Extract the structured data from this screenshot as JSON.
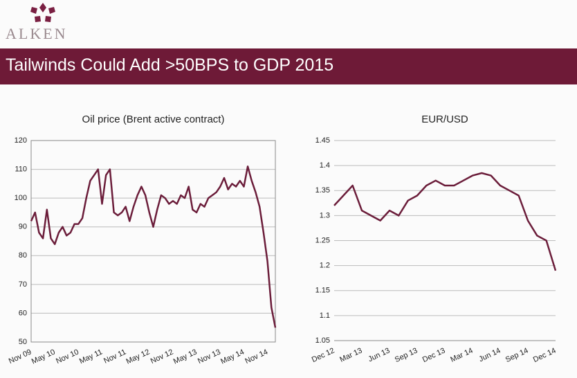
{
  "header": {
    "logo": "ALKEN",
    "title": "Tailwinds Could Add >50BPS to GDP 2015"
  },
  "chart_data": [
    {
      "type": "line",
      "title": "Oil price (Brent active contract)",
      "color": "#6b1d3a",
      "grid": true,
      "border": true,
      "categories": [
        "Nov 09",
        null,
        null,
        null,
        null,
        null,
        "May 10",
        null,
        null,
        null,
        null,
        null,
        "Nov 10",
        null,
        null,
        null,
        null,
        null,
        "May 11",
        null,
        null,
        null,
        null,
        null,
        "Nov 11",
        null,
        null,
        null,
        null,
        null,
        "May 12",
        null,
        null,
        null,
        null,
        null,
        "Nov 12",
        null,
        null,
        null,
        null,
        null,
        "May 13",
        null,
        null,
        null,
        null,
        null,
        "Nov 13",
        null,
        null,
        null,
        null,
        null,
        "May 14",
        null,
        null,
        null,
        null,
        null,
        "Nov 14",
        null,
        null
      ],
      "values": [
        92,
        95,
        88,
        86,
        96,
        86,
        84,
        88,
        90,
        87,
        88,
        91,
        91,
        93,
        100,
        106,
        108,
        110,
        98,
        108,
        110,
        95,
        94,
        95,
        97,
        92,
        97,
        101,
        104,
        101,
        95,
        90,
        96,
        101,
        100,
        98,
        99,
        98,
        101,
        100,
        104,
        96,
        95,
        98,
        97,
        100,
        101,
        102,
        104,
        107,
        103,
        105,
        104,
        106,
        104,
        111,
        106,
        102,
        97,
        88,
        78,
        62,
        55
      ],
      "ylim": [
        50,
        120
      ],
      "yticks": [
        50,
        60,
        70,
        80,
        90,
        100,
        110,
        120
      ]
    },
    {
      "type": "line",
      "title": "EUR/USD",
      "color": "#6b1d3a",
      "grid": true,
      "border": false,
      "categories": [
        "Dec 12",
        null,
        null,
        "Mar 13",
        null,
        null,
        "Jun 13",
        null,
        null,
        "Sep 13",
        null,
        null,
        "Dec 13",
        null,
        null,
        "Mar 14",
        null,
        null,
        "Jun 14",
        null,
        null,
        "Sep 14",
        null,
        null,
        "Dec 14"
      ],
      "values": [
        1.32,
        1.34,
        1.36,
        1.31,
        1.3,
        1.29,
        1.31,
        1.3,
        1.33,
        1.34,
        1.36,
        1.37,
        1.36,
        1.36,
        1.37,
        1.38,
        1.385,
        1.38,
        1.36,
        1.35,
        1.34,
        1.29,
        1.26,
        1.25,
        1.19
      ],
      "ylim": [
        1.05,
        1.45
      ],
      "yticks": [
        1.05,
        1.1,
        1.15,
        1.2,
        1.25,
        1.3,
        1.35,
        1.4,
        1.45
      ]
    }
  ]
}
